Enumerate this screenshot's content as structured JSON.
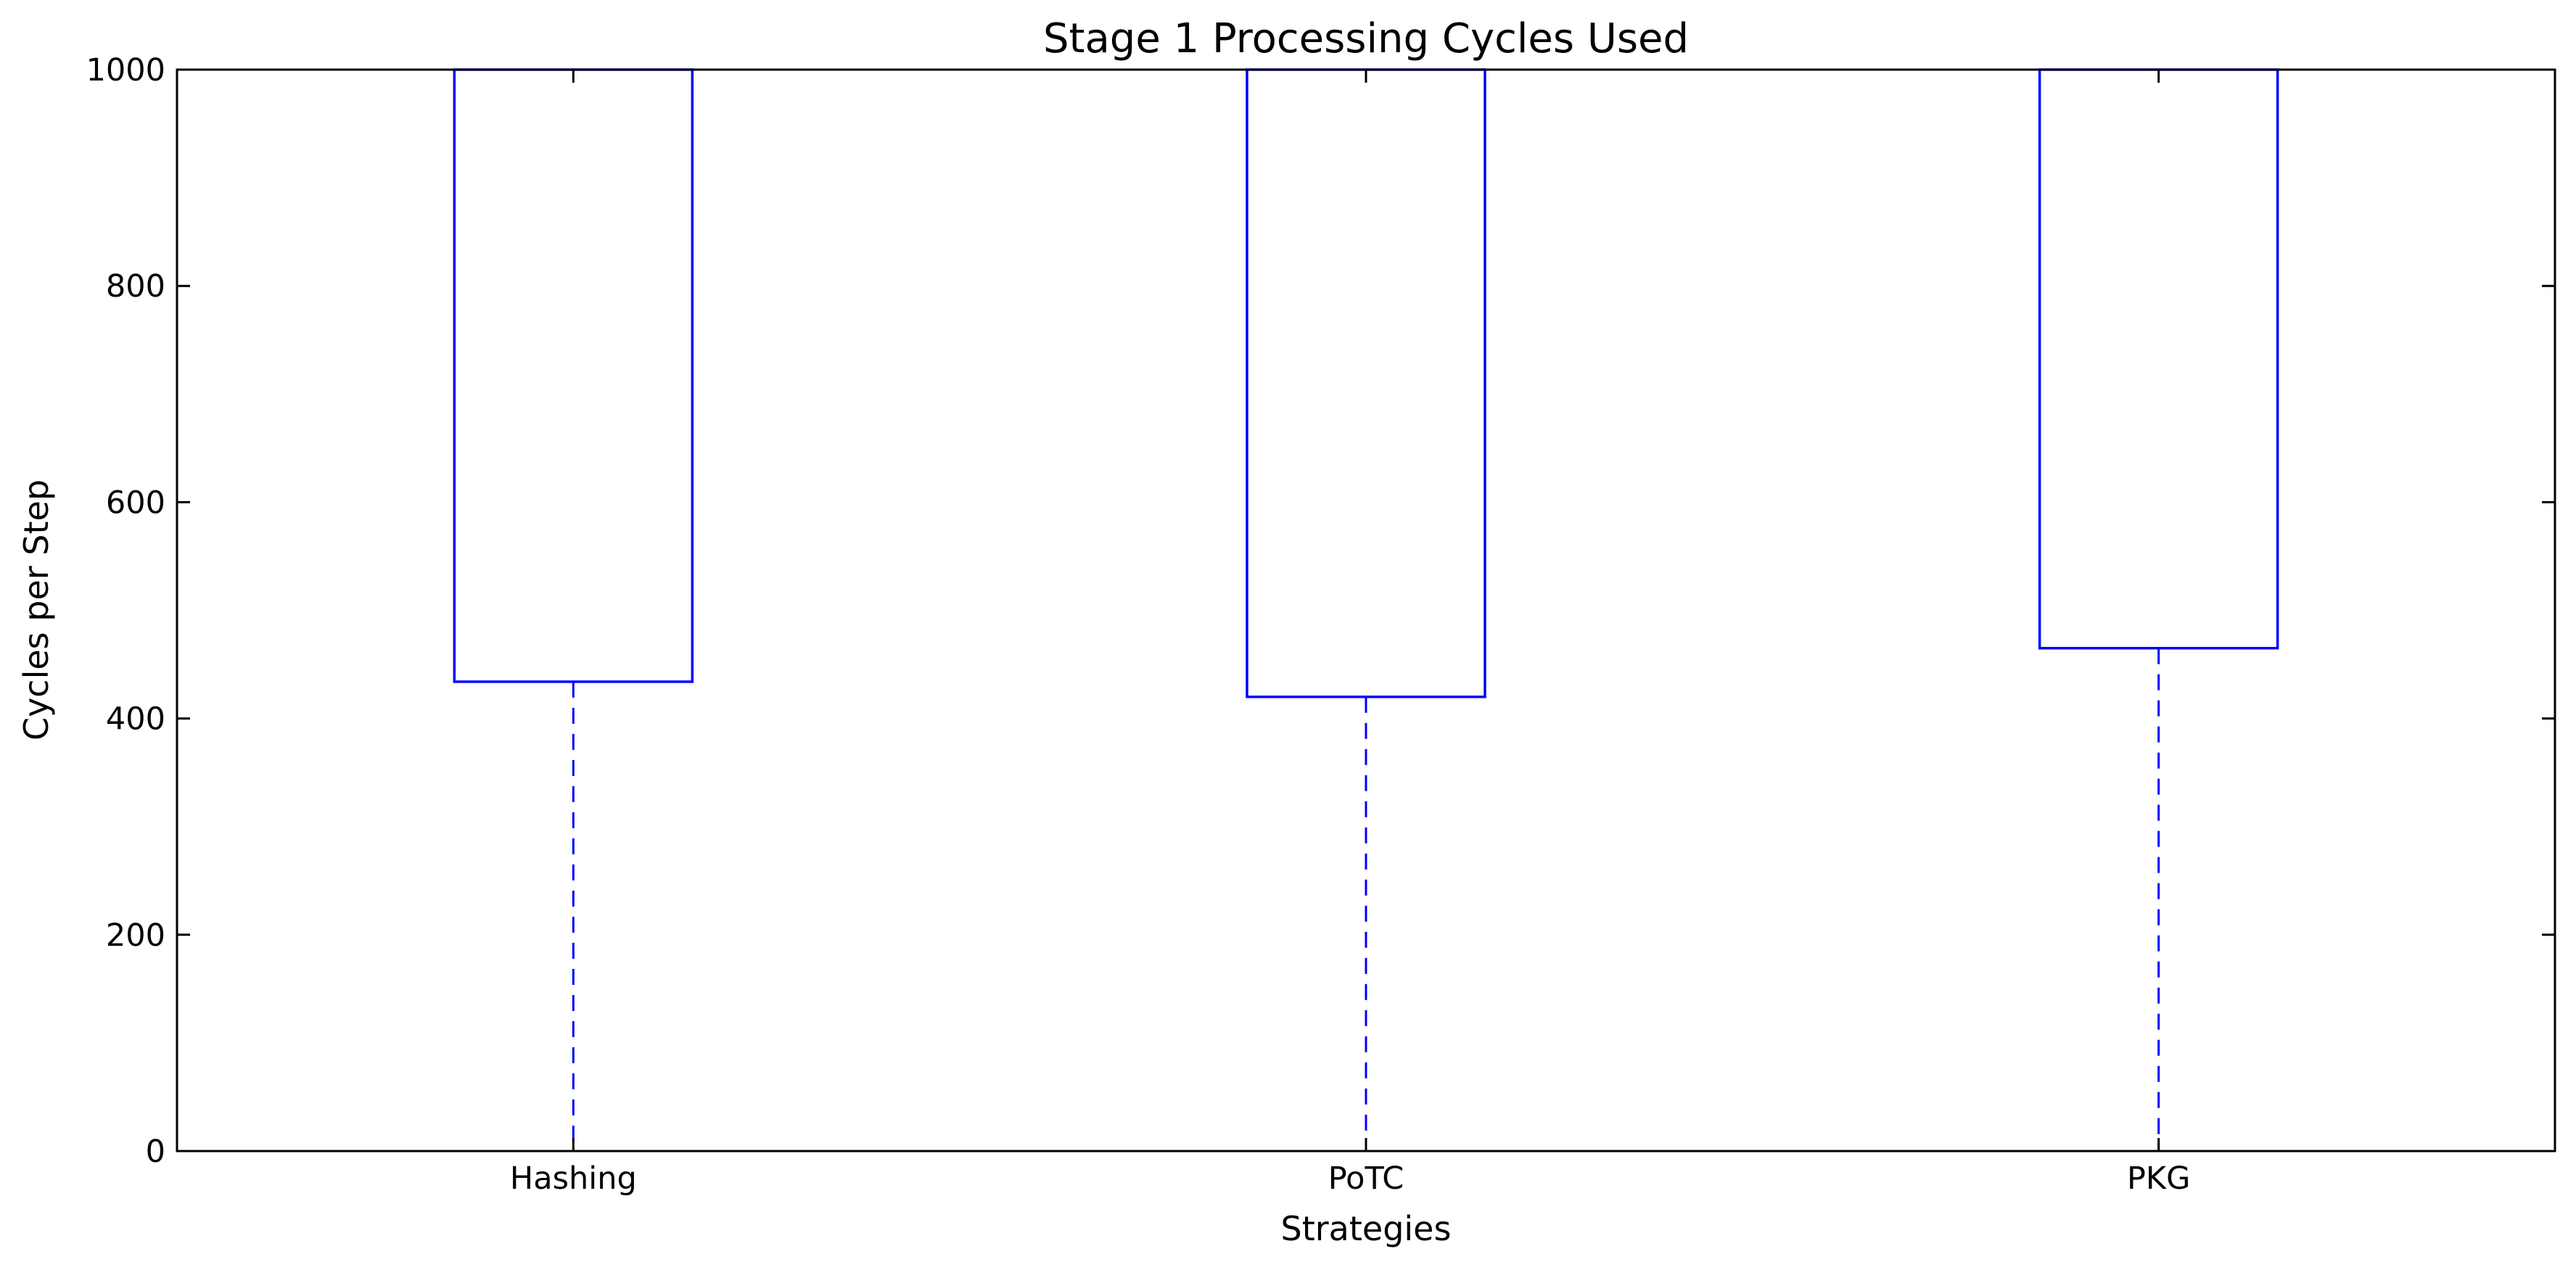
{
  "chart_data": {
    "type": "box",
    "title": "Stage 1 Processing Cycles Used",
    "xlabel": "Strategies",
    "ylabel": "Cycles per Step",
    "categories": [
      "Hashing",
      "PoTC",
      "PKG"
    ],
    "boxes": [
      {
        "category": "Hashing",
        "whisker_low": 0,
        "q1": 434,
        "q3": 1000
      },
      {
        "category": "PoTC",
        "whisker_low": 0,
        "q1": 420,
        "q3": 1000
      },
      {
        "category": "PKG",
        "whisker_low": 0,
        "q1": 465,
        "q3": 1000
      }
    ],
    "ylim": [
      0,
      1000
    ],
    "yticks": [
      0,
      200,
      400,
      600,
      800,
      1000
    ],
    "ytick_labels": [
      "0",
      "200",
      "400",
      "600",
      "800",
      "1000"
    ],
    "grid": false,
    "legend": "none",
    "colors": {
      "box": "#0000ff",
      "whisker": "#0000ff",
      "axis": "#000000",
      "background": "#ffffff"
    }
  }
}
